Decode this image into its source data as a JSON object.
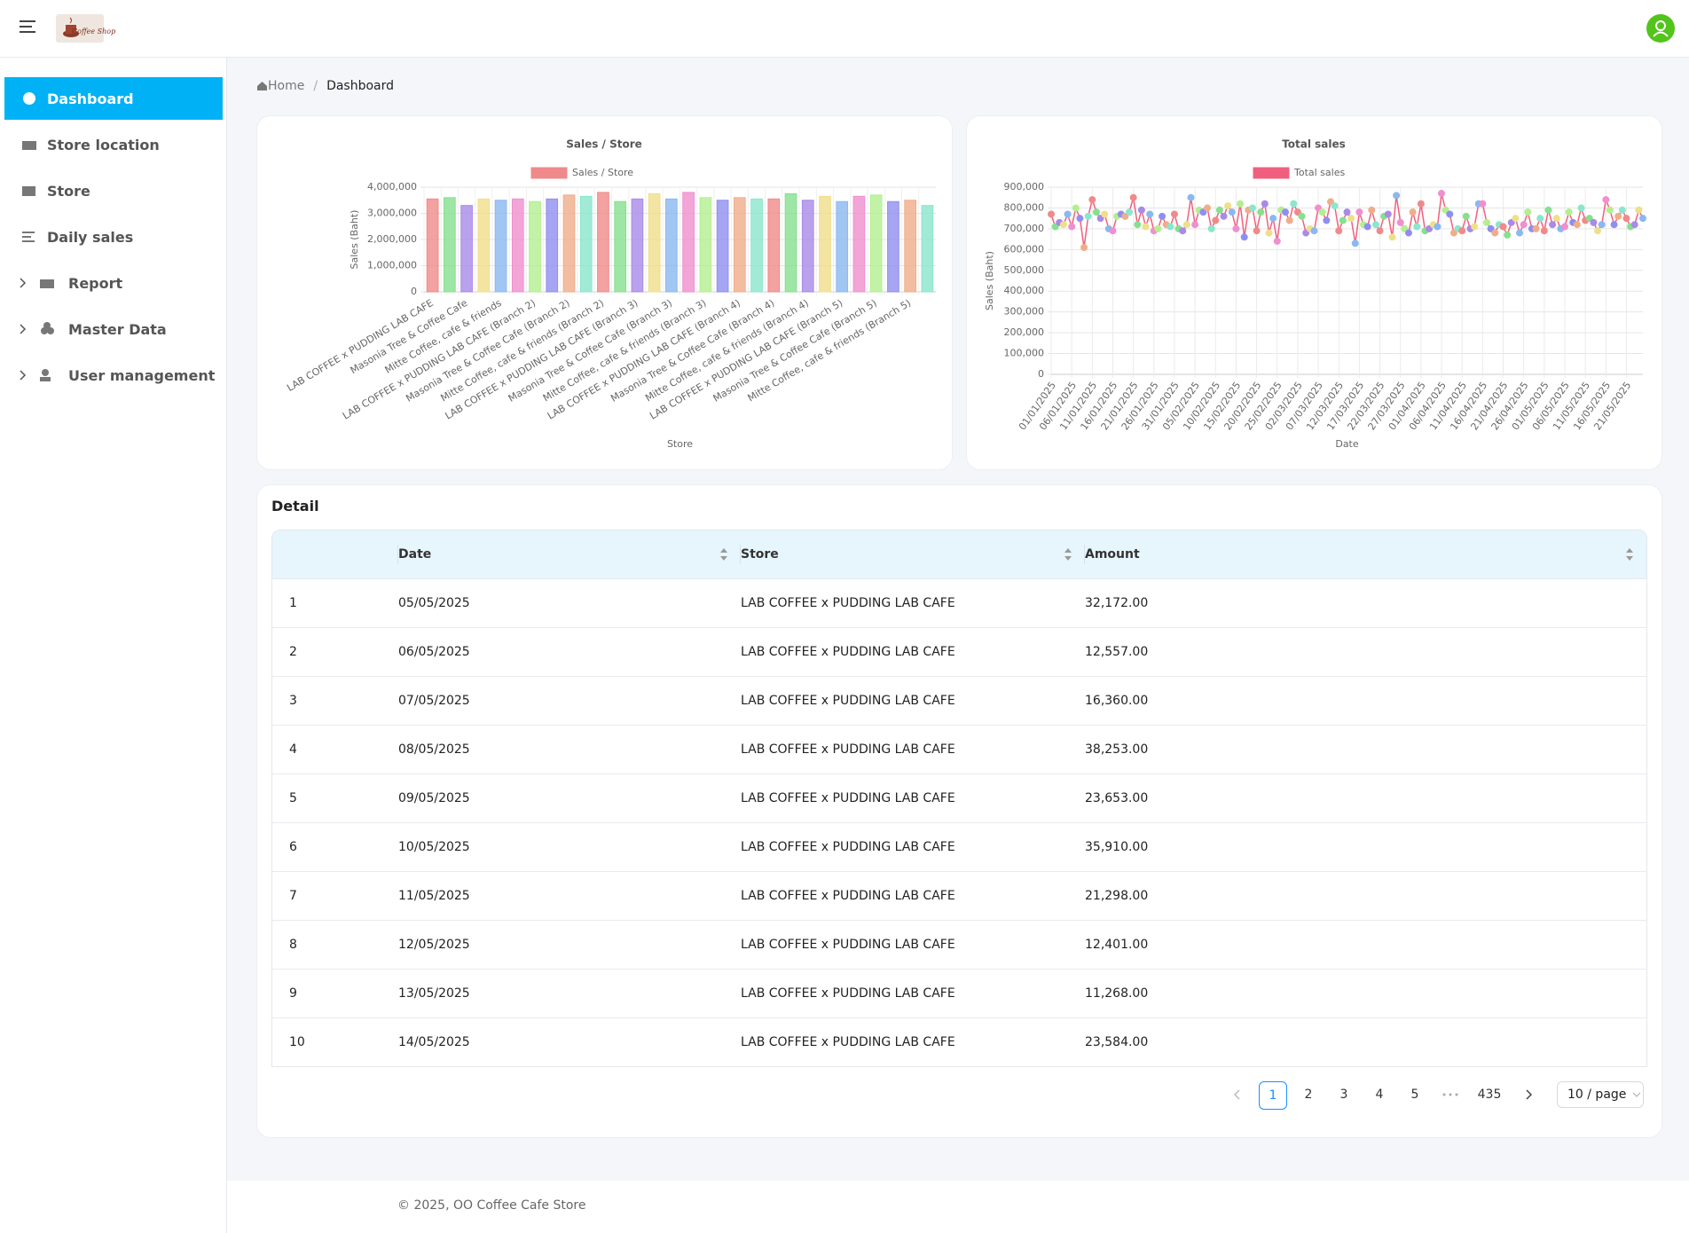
{
  "header": {
    "logo_text": "Coffee Shop"
  },
  "sidebar": {
    "items": [
      "Dashboard",
      "Store location",
      "Store",
      "Daily sales",
      "Report",
      "Master Data",
      "User management"
    ]
  },
  "breadcrumb": [
    "Home",
    "Dashboard"
  ],
  "chart_data": [
    {
      "type": "bar",
      "title": "Sales / Store",
      "legend": "Sales / Store",
      "color": "#f08a8a",
      "palette": [
        "#f08a8a",
        "#86e08e",
        "#a98ae8",
        "#f0df8a",
        "#8ab8f0",
        "#f08fce",
        "#b3ef8f",
        "#8f8ff0",
        "#f0ad8a",
        "#8ae6cc"
      ],
      "xlabel": "Store",
      "ylabel": "Sales (Baht)",
      "grid": true,
      "categories": [
        "LAB COFFEE x PUDDING LAB CAFE",
        null,
        "Masonia Tree & Coffee Cafe",
        null,
        "Mitte Coffee, cafe & friends",
        null,
        "LAB COFFEE x PUDDING LAB CAFE (Branch 2)",
        null,
        "Masonia Tree & Coffee Cafe (Branch 2)",
        null,
        "Mitte Coffee, cafe & friends (Branch 2)",
        null,
        "LAB COFFEE x PUDDING LAB CAFE  (Branch 3)",
        null,
        "Masonia Tree & Coffee Cafe (Branch 3)",
        null,
        "Mitte Coffee, cafe & friends (Branch 3)",
        null,
        "LAB COFFEE x PUDDING LAB CAFE  (Branch 4)",
        null,
        "Masonia Tree & Coffee Cafe (Branch 4)",
        null,
        "Mitte Coffee, cafe & friends (Branch 4)",
        null,
        "LAB COFFEE x PUDDING LAB CAFE  (Branch 5)",
        null,
        "Masonia Tree & Coffee Cafe (Branch 5)",
        null,
        "Mitte Coffee, cafe & friends (Branch 5)",
        null
      ],
      "values": [
        3550000,
        3600000,
        3300000,
        3550000,
        3500000,
        3550000,
        3450000,
        3550000,
        3700000,
        3650000,
        3800000,
        3450000,
        3550000,
        3750000,
        3550000,
        3800000,
        3600000,
        3500000,
        3600000,
        3550000,
        3550000,
        3750000,
        3500000,
        3650000,
        3450000,
        3650000,
        3700000,
        3450000,
        3500000,
        3300000
      ],
      "ylim": [
        0,
        4000000
      ],
      "yticks": [
        0,
        {
          "value": 1000000,
          "label": "1,000,000"
        },
        {
          "value": 2000000,
          "label": "2,000,000"
        },
        {
          "value": 3000000,
          "label": "3,000,000"
        },
        {
          "value": 4000000,
          "label": "4,000,000"
        }
      ]
    },
    {
      "type": "line",
      "title": "Total sales",
      "legend": "Total sales",
      "color": "#f0607e",
      "palette": [
        "#f08a8a",
        "#86e08e",
        "#a98ae8",
        "#f0df8a",
        "#8ab8f0",
        "#f08fce",
        "#b3ef8f",
        "#8f8ff0",
        "#f0ad8a",
        "#8ae6cc"
      ],
      "xlabel": "Date",
      "ylabel": "Sales (Baht)",
      "grid": true,
      "x": [
        "01/01/2025",
        null,
        null,
        null,
        null,
        "06/01/2025",
        null,
        null,
        null,
        null,
        "11/01/2025",
        null,
        null,
        null,
        null,
        "16/01/2025",
        null,
        null,
        null,
        null,
        "21/01/2025",
        null,
        null,
        null,
        null,
        "26/01/2025",
        null,
        null,
        null,
        null,
        "31/01/2025",
        null,
        null,
        null,
        null,
        "05/02/2025",
        null,
        null,
        null,
        null,
        "10/02/2025",
        null,
        null,
        null,
        null,
        "15/02/2025",
        null,
        null,
        null,
        null,
        "20/02/2025",
        null,
        null,
        null,
        null,
        "25/02/2025",
        null,
        null,
        null,
        null,
        "02/03/2025",
        null,
        null,
        null,
        null,
        "07/03/2025",
        null,
        null,
        null,
        null,
        "12/03/2025",
        null,
        null,
        null,
        null,
        "17/03/2025",
        null,
        null,
        null,
        null,
        "22/03/2025",
        null,
        null,
        null,
        null,
        "27/03/2025",
        null,
        null,
        null,
        null,
        "01/04/2025",
        null,
        null,
        null,
        null,
        "06/04/2025",
        null,
        null,
        null,
        null,
        "11/04/2025",
        null,
        null,
        null,
        null,
        "16/04/2025",
        null,
        null,
        null,
        null,
        "21/04/2025",
        null,
        null,
        null,
        null,
        "26/04/2025",
        null,
        null,
        null,
        null,
        "01/05/2025",
        null,
        null,
        null,
        null,
        "06/05/2025",
        null,
        null,
        null,
        null,
        "11/05/2025",
        null,
        null,
        null,
        null,
        "16/05/2025",
        null,
        null,
        null,
        null,
        "21/05/2025",
        null,
        null,
        null,
        null
      ],
      "values": [
        770000,
        710000,
        730000,
        720000,
        770000,
        710000,
        800000,
        750000,
        610000,
        760000,
        840000,
        780000,
        750000,
        770000,
        700000,
        690000,
        760000,
        770000,
        760000,
        780000,
        850000,
        720000,
        790000,
        710000,
        770000,
        690000,
        700000,
        760000,
        720000,
        710000,
        770000,
        700000,
        690000,
        720000,
        850000,
        720000,
        790000,
        780000,
        800000,
        700000,
        740000,
        790000,
        760000,
        810000,
        780000,
        700000,
        820000,
        660000,
        790000,
        800000,
        690000,
        780000,
        820000,
        680000,
        750000,
        640000,
        790000,
        780000,
        740000,
        820000,
        780000,
        760000,
        680000,
        700000,
        690000,
        800000,
        780000,
        740000,
        830000,
        810000,
        690000,
        740000,
        780000,
        750000,
        630000,
        780000,
        720000,
        710000,
        790000,
        720000,
        690000,
        760000,
        770000,
        660000,
        860000,
        730000,
        700000,
        680000,
        780000,
        710000,
        820000,
        690000,
        700000,
        720000,
        710000,
        870000,
        790000,
        770000,
        680000,
        700000,
        690000,
        760000,
        700000,
        710000,
        820000,
        820000,
        730000,
        700000,
        680000,
        720000,
        710000,
        670000,
        730000,
        750000,
        680000,
        720000,
        780000,
        700000,
        700000,
        750000,
        690000,
        790000,
        720000,
        750000,
        700000,
        710000,
        780000,
        730000,
        720000,
        800000,
        740000,
        750000,
        730000,
        690000,
        720000,
        840000,
        790000,
        720000,
        760000,
        790000,
        750000,
        710000,
        720000,
        790000,
        750000
      ],
      "ylim": [
        0,
        900000
      ],
      "yticks": [
        0,
        {
          "value": 100000,
          "label": "100,000"
        },
        {
          "value": 200000,
          "label": "200,000"
        },
        {
          "value": 300000,
          "label": "300,000"
        },
        {
          "value": 400000,
          "label": "400,000"
        },
        {
          "value": 500000,
          "label": "500,000"
        },
        {
          "value": 600000,
          "label": "600,000"
        },
        {
          "value": 700000,
          "label": "700,000"
        },
        {
          "value": 800000,
          "label": "800,000"
        },
        {
          "value": 900000,
          "label": "900,000"
        }
      ]
    }
  ],
  "detail": {
    "title": "Detail",
    "columns": [
      "Date",
      "Store",
      "Amount"
    ],
    "rows": [
      [
        "1",
        "05/05/2025",
        "LAB COFFEE x PUDDING LAB CAFE",
        "32,172.00"
      ],
      [
        "2",
        "06/05/2025",
        "LAB COFFEE x PUDDING LAB CAFE",
        "12,557.00"
      ],
      [
        "3",
        "07/05/2025",
        "LAB COFFEE x PUDDING LAB CAFE",
        "16,360.00"
      ],
      [
        "4",
        "08/05/2025",
        "LAB COFFEE x PUDDING LAB CAFE",
        "38,253.00"
      ],
      [
        "5",
        "09/05/2025",
        "LAB COFFEE x PUDDING LAB CAFE",
        "23,653.00"
      ],
      [
        "6",
        "10/05/2025",
        "LAB COFFEE x PUDDING LAB CAFE",
        "35,910.00"
      ],
      [
        "7",
        "11/05/2025",
        "LAB COFFEE x PUDDING LAB CAFE",
        "21,298.00"
      ],
      [
        "8",
        "12/05/2025",
        "LAB COFFEE x PUDDING LAB CAFE",
        "12,401.00"
      ],
      [
        "9",
        "13/05/2025",
        "LAB COFFEE x PUDDING LAB CAFE",
        "11,268.00"
      ],
      [
        "10",
        "14/05/2025",
        "LAB COFFEE x PUDDING LAB CAFE",
        "23,584.00"
      ]
    ]
  },
  "pagination": {
    "pages": [
      "1",
      "2",
      "3",
      "4",
      "5",
      "435"
    ],
    "page_size": "10 / page"
  },
  "footer": "© 2025, OO Coffee Cafe Store"
}
